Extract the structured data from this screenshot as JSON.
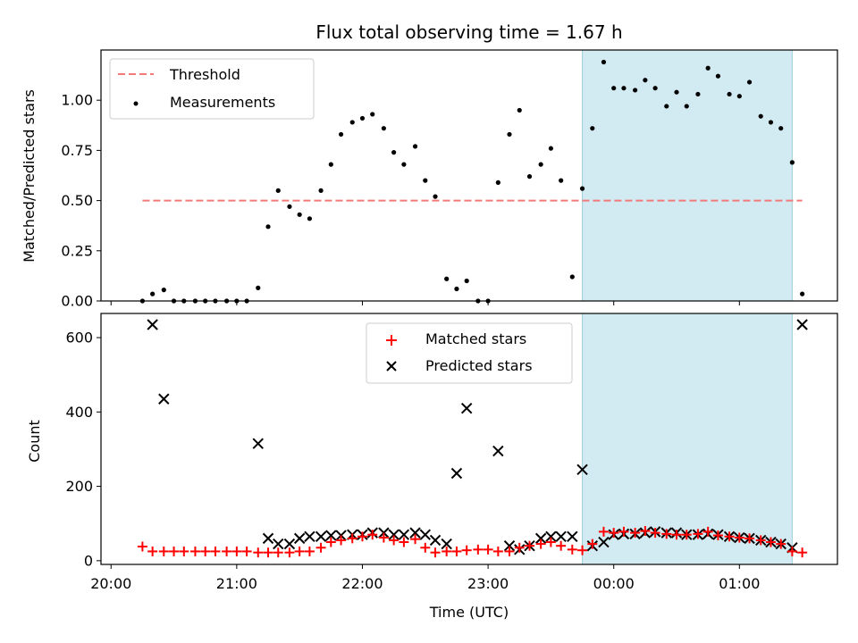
{
  "chart_data": [
    {
      "type": "scatter",
      "title": "Flux total observing time = 1.67 h",
      "xlabel": "",
      "ylabel": "Matched/Predicted stars",
      "x_unit": "hours since 20:00 UTC",
      "xlim": [
        -0.08,
        5.78
      ],
      "ylim": [
        0.0,
        1.25
      ],
      "yticks": [
        0.0,
        0.25,
        0.5,
        0.75,
        1.0
      ],
      "ytick_labels": [
        "0.00",
        "0.25",
        "0.50",
        "0.75",
        "1.00"
      ],
      "highlight_span": [
        3.75,
        5.42
      ],
      "highlight_color": "#add8e6",
      "threshold": {
        "name": "Threshold",
        "value": 0.5,
        "x_range": [
          0.25,
          5.5
        ],
        "color": "#f47a7a"
      },
      "series": [
        {
          "name": "Measurements",
          "color": "#000000",
          "x": [
            0.25,
            0.33,
            0.42,
            0.5,
            0.58,
            0.67,
            0.75,
            0.83,
            0.92,
            1.0,
            1.08,
            1.17,
            1.25,
            1.33,
            1.42,
            1.5,
            1.58,
            1.67,
            1.75,
            1.83,
            1.92,
            2.0,
            2.08,
            2.17,
            2.25,
            2.33,
            2.42,
            2.5,
            2.58,
            2.67,
            2.75,
            2.83,
            2.92,
            3.0,
            3.08,
            3.17,
            3.25,
            3.33,
            3.42,
            3.5,
            3.58,
            3.67,
            3.75,
            3.83,
            3.92,
            4.0,
            4.08,
            4.17,
            4.25,
            4.33,
            4.42,
            4.5,
            4.58,
            4.67,
            4.75,
            4.83,
            4.92,
            5.0,
            5.08,
            5.17,
            5.25,
            5.33,
            5.42,
            5.5
          ],
          "y": [
            0.0,
            0.035,
            0.055,
            0.0,
            0.0,
            0.0,
            0.0,
            0.0,
            0.0,
            0.0,
            0.0,
            0.065,
            0.37,
            0.55,
            0.47,
            0.43,
            0.41,
            0.55,
            0.68,
            0.83,
            0.89,
            0.91,
            0.93,
            0.86,
            0.74,
            0.68,
            0.77,
            0.6,
            0.52,
            0.11,
            0.06,
            0.1,
            0.0,
            0.0,
            0.59,
            0.83,
            0.95,
            0.62,
            0.68,
            0.76,
            0.6,
            0.12,
            0.56,
            0.86,
            1.19,
            1.06,
            1.06,
            1.05,
            1.1,
            1.06,
            0.97,
            1.04,
            0.97,
            1.03,
            1.16,
            1.12,
            1.03,
            1.02,
            1.09,
            0.92,
            0.89,
            0.86,
            0.69,
            0.035
          ]
        }
      ]
    },
    {
      "type": "scatter",
      "xlabel": "Time (UTC)",
      "ylabel": "Count",
      "x_unit": "hours since 20:00 UTC",
      "xlim": [
        -0.08,
        5.78
      ],
      "ylim": [
        -10,
        665
      ],
      "xticks": [
        0,
        1,
        2,
        3,
        4,
        5
      ],
      "xtick_labels": [
        "20:00",
        "21:00",
        "22:00",
        "23:00",
        "00:00",
        "01:00"
      ],
      "yticks": [
        0,
        200,
        400,
        600
      ],
      "ytick_labels": [
        "0",
        "200",
        "400",
        "600"
      ],
      "highlight_span": [
        3.75,
        5.42
      ],
      "highlight_color": "#add8e6",
      "series": [
        {
          "name": "Matched stars",
          "marker": "plus",
          "color": "#ff0000",
          "x": [
            0.25,
            0.33,
            0.42,
            0.5,
            0.58,
            0.67,
            0.75,
            0.83,
            0.92,
            1.0,
            1.08,
            1.17,
            1.25,
            1.33,
            1.42,
            1.5,
            1.58,
            1.67,
            1.75,
            1.83,
            1.92,
            2.0,
            2.08,
            2.17,
            2.25,
            2.33,
            2.42,
            2.5,
            2.58,
            2.67,
            2.75,
            2.83,
            2.92,
            3.0,
            3.08,
            3.17,
            3.25,
            3.33,
            3.42,
            3.5,
            3.58,
            3.67,
            3.75,
            3.83,
            3.92,
            4.0,
            4.08,
            4.17,
            4.25,
            4.33,
            4.42,
            4.5,
            4.58,
            4.67,
            4.75,
            4.83,
            4.92,
            5.0,
            5.08,
            5.17,
            5.25,
            5.33,
            5.42,
            5.5
          ],
          "y": [
            38,
            25,
            25,
            25,
            25,
            25,
            25,
            25,
            25,
            25,
            25,
            22,
            22,
            22,
            22,
            25,
            25,
            35,
            50,
            55,
            60,
            65,
            70,
            62,
            55,
            50,
            58,
            35,
            22,
            25,
            25,
            28,
            30,
            30,
            25,
            25,
            35,
            40,
            45,
            50,
            40,
            30,
            28,
            45,
            78,
            75,
            78,
            75,
            80,
            75,
            72,
            70,
            70,
            72,
            78,
            68,
            65,
            62,
            60,
            55,
            50,
            45,
            25,
            22
          ]
        },
        {
          "name": "Predicted stars",
          "marker": "x",
          "color": "#000000",
          "x": [
            0.33,
            0.42,
            1.17,
            1.25,
            1.33,
            1.42,
            1.5,
            1.58,
            1.67,
            1.75,
            1.83,
            1.92,
            2.0,
            2.08,
            2.17,
            2.25,
            2.33,
            2.42,
            2.5,
            2.58,
            2.67,
            2.75,
            2.83,
            3.08,
            3.17,
            3.25,
            3.33,
            3.42,
            3.5,
            3.58,
            3.67,
            3.75,
            3.83,
            3.92,
            4.0,
            4.08,
            4.17,
            4.25,
            4.33,
            4.42,
            4.5,
            4.58,
            4.67,
            4.75,
            4.83,
            4.92,
            5.0,
            5.08,
            5.17,
            5.25,
            5.33,
            5.42,
            5.5
          ],
          "y": [
            635,
            435,
            315,
            60,
            45,
            45,
            60,
            65,
            65,
            68,
            68,
            70,
            70,
            75,
            75,
            70,
            70,
            75,
            70,
            55,
            45,
            235,
            410,
            295,
            40,
            30,
            40,
            60,
            65,
            65,
            65,
            245,
            40,
            50,
            70,
            72,
            72,
            75,
            78,
            75,
            75,
            70,
            70,
            72,
            70,
            65,
            62,
            60,
            55,
            50,
            45,
            35,
            635
          ]
        }
      ]
    }
  ]
}
